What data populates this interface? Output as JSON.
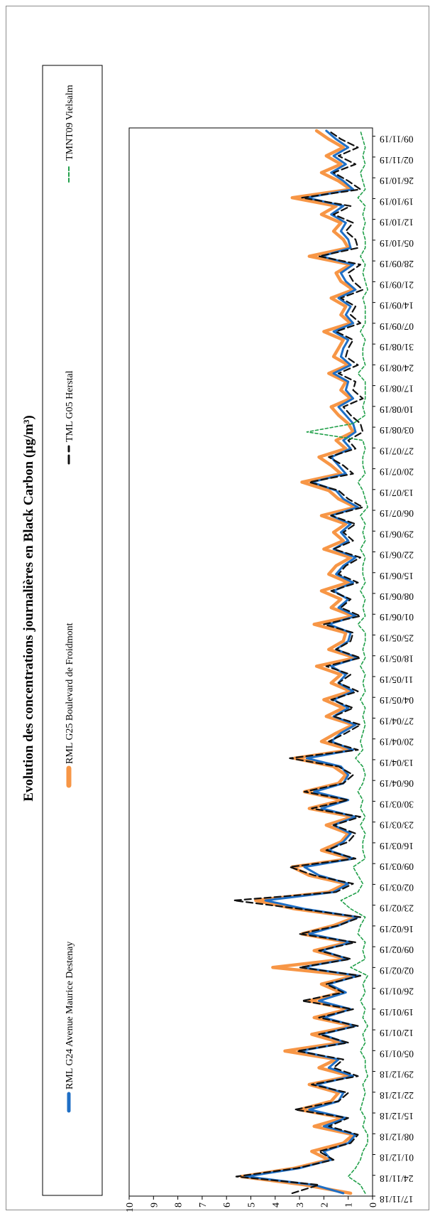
{
  "chart_data": {
    "type": "line",
    "title": "Evolution des concentrations journalières en Black Carbon (µg/m³)",
    "xlabel": "",
    "ylabel": "",
    "ylim": [
      0,
      10
    ],
    "yticks": [
      0,
      1,
      2,
      3,
      4,
      5,
      6,
      7,
      8,
      9,
      10
    ],
    "grid": false,
    "legend": "top",
    "x_tick_labels": [
      "17/11/18",
      "24/11/18",
      "01/12/18",
      "08/12/18",
      "15/12/18",
      "22/12/18",
      "29/12/18",
      "05/01/19",
      "12/01/19",
      "19/01/19",
      "26/01/19",
      "02/02/19",
      "09/02/19",
      "16/02/19",
      "23/02/19",
      "02/03/19",
      "09/03/19",
      "16/03/19",
      "23/03/19",
      "30/03/19",
      "06/04/19",
      "13/04/19",
      "20/04/19",
      "27/04/19",
      "04/05/19",
      "11/05/19",
      "18/05/19",
      "25/05/19",
      "01/06/19",
      "08/06/19",
      "15/06/19",
      "22/06/19",
      "29/06/19",
      "06/07/19",
      "13/07/19",
      "20/07/19",
      "27/07/19",
      "03/08/19",
      "10/08/19",
      "17/08/19",
      "24/08/19",
      "31/08/19",
      "07/09/19",
      "14/09/19",
      "21/09/19",
      "28/09/19",
      "05/10/19",
      "12/10/19",
      "19/10/19",
      "26/10/19",
      "02/11/19",
      "09/11/19"
    ],
    "x_start": "17/11/18",
    "x_end": "12/11/19",
    "series": [
      {
        "name": "RML G25 Boulevard de Froidmont",
        "color": "#f79646",
        "style": "solid-thick",
        "values": [
          0.9,
          2.8,
          5.4,
          3.2,
          1.8,
          2.5,
          1.2,
          0.8,
          2.4,
          1.2,
          3.0,
          1.7,
          1.4,
          2.6,
          0.9,
          2.2,
          1.5,
          3.6,
          1.3,
          2.5,
          0.8,
          2.4,
          1.0,
          2.6,
          1.3,
          2.1,
          0.7,
          4.1,
          1.1,
          2.4,
          1.0,
          2.9,
          1.6,
          0.7,
          3.2,
          4.8,
          1.8,
          1.1,
          2.6,
          3.3,
          0.9,
          2.1,
          1.3,
          1.0,
          1.9,
          0.8,
          2.6,
          1.2,
          2.8,
          1.4,
          1.1,
          1.6,
          3.2,
          0.9,
          2.1,
          1.5,
          0.8,
          1.9,
          1.2,
          2.0,
          0.9,
          1.7,
          1.3,
          2.3,
          0.7,
          1.8,
          1.2,
          1.1,
          2.4,
          0.8,
          1.7,
          1.3,
          2.1,
          1.0,
          1.8,
          1.5,
          0.9,
          2.0,
          1.2,
          1.6,
          1.1,
          2.1,
          0.7,
          1.4,
          1.8,
          2.9,
          1.3,
          1.7,
          2.2,
          1.1,
          1.5,
          0.8,
          1.0,
          1.4,
          1.7,
          0.9,
          1.3,
          1.1,
          1.8,
          1.0,
          1.6,
          1.4,
          1.2,
          2.0,
          0.9,
          1.3,
          1.1,
          1.7,
          0.8,
          1.3,
          1.5,
          0.9,
          2.6,
          1.0,
          1.2,
          1.6,
          1.3,
          2.1,
          1.5,
          3.3,
          0.9,
          1.4,
          2.1,
          1.3,
          1.9,
          1.2,
          1.8,
          2.3
        ]
      },
      {
        "name": "RML G24 Avenue Maurice Destenay",
        "color": "#1f6fc5",
        "style": "solid",
        "values": [
          1.2,
          2.4,
          5.2,
          3.0,
          1.7,
          2.0,
          1.0,
          0.7,
          2.0,
          1.1,
          2.6,
          1.4,
          1.2,
          2.3,
          0.8,
          1.8,
          1.4,
          3.0,
          1.1,
          2.1,
          0.7,
          2.0,
          0.9,
          2.2,
          1.1,
          1.8,
          0.6,
          2.9,
          1.0,
          2.1,
          0.9,
          2.6,
          1.4,
          0.6,
          2.8,
          4.4,
          1.6,
          1.0,
          2.2,
          2.8,
          0.8,
          1.8,
          1.2,
          0.9,
          1.6,
          0.7,
          2.1,
          1.0,
          2.4,
          1.2,
          1.0,
          1.3,
          2.7,
          0.8,
          1.7,
          1.3,
          0.7,
          1.6,
          1.0,
          1.6,
          0.8,
          1.4,
          1.1,
          1.7,
          0.6,
          1.5,
          1.0,
          0.9,
          1.8,
          0.7,
          1.4,
          1.0,
          1.6,
          0.8,
          1.5,
          1.2,
          0.7,
          1.6,
          1.0,
          1.3,
          0.9,
          1.7,
          0.6,
          1.2,
          1.5,
          2.5,
          1.1,
          1.4,
          1.7,
          0.9,
          1.2,
          0.7,
          0.8,
          1.1,
          1.4,
          0.8,
          1.1,
          1.0,
          1.6,
          0.9,
          1.3,
          1.2,
          1.0,
          1.6,
          0.8,
          1.1,
          0.9,
          1.4,
          0.7,
          1.1,
          1.3,
          0.8,
          2.1,
          0.9,
          1.0,
          1.3,
          1.1,
          1.7,
          1.2,
          2.7,
          0.8,
          1.2,
          1.7,
          1.1,
          1.6,
          1.0,
          1.5,
          1.9
        ]
      },
      {
        "name": "TML G05 Herstal",
        "color": "#111111",
        "style": "dashed",
        "values": [
          3.3,
          2.2,
          5.6,
          3.1,
          1.6,
          2.2,
          0.9,
          0.6,
          1.8,
          1.0,
          3.2,
          1.4,
          1.0,
          2.5,
          0.6,
          1.6,
          1.2,
          3.1,
          1.0,
          2.2,
          0.6,
          2.2,
          0.8,
          2.9,
          1.2,
          1.9,
          0.5,
          3.0,
          0.9,
          2.2,
          0.7,
          3.0,
          1.4,
          0.5,
          3.0,
          5.7,
          1.5,
          0.8,
          2.4,
          3.4,
          0.7,
          1.9,
          1.0,
          0.7,
          1.6,
          0.5,
          2.5,
          1.0,
          2.8,
          1.2,
          0.8,
          1.4,
          3.4,
          0.6,
          1.8,
          1.1,
          0.5,
          1.6,
          0.8,
          1.7,
          0.6,
          1.4,
          0.9,
          1.9,
          0.5,
          1.5,
          0.9,
          0.8,
          2.0,
          0.5,
          1.3,
          0.9,
          1.7,
          0.6,
          1.4,
          1.1,
          0.5,
          1.6,
          0.8,
          1.2,
          0.7,
          1.7,
          0.4,
          1.0,
          1.4,
          2.6,
          0.8,
          1.2,
          1.8,
          0.7,
          1.0,
          0.4,
          0.5,
          0.9,
          1.2,
          0.4,
          0.8,
          0.7,
          1.4,
          0.6,
          1.1,
          1.0,
          0.8,
          1.5,
          0.5,
          0.9,
          0.7,
          1.3,
          0.4,
          0.8,
          1.0,
          0.5,
          2.2,
          0.6,
          0.7,
          1.1,
          0.8,
          1.6,
          0.9,
          2.9,
          0.5,
          1.0,
          1.6,
          0.7,
          1.4,
          0.6,
          1.3,
          1.8
        ]
      },
      {
        "name": "TMNT09 Vielsalm",
        "color": "#21a04a",
        "style": "dashed-thin",
        "values": [
          0.3,
          0.5,
          1.0,
          0.7,
          0.5,
          0.4,
          0.2,
          0.2,
          0.4,
          0.3,
          0.5,
          0.4,
          0.3,
          0.4,
          0.2,
          0.3,
          0.3,
          0.5,
          0.3,
          0.4,
          0.2,
          0.4,
          0.3,
          0.5,
          0.3,
          0.4,
          0.2,
          0.9,
          0.3,
          0.4,
          0.3,
          0.6,
          0.5,
          0.3,
          0.9,
          1.3,
          0.6,
          0.4,
          0.6,
          0.8,
          0.3,
          0.4,
          0.4,
          0.3,
          0.5,
          0.3,
          0.5,
          0.4,
          0.6,
          0.4,
          0.3,
          0.4,
          0.7,
          0.4,
          0.5,
          0.4,
          0.3,
          0.4,
          0.3,
          0.5,
          0.3,
          0.4,
          0.3,
          0.5,
          0.3,
          0.4,
          0.3,
          0.3,
          0.6,
          0.3,
          0.4,
          0.3,
          0.5,
          0.3,
          0.4,
          0.4,
          0.3,
          0.5,
          0.3,
          0.4,
          0.3,
          0.5,
          0.2,
          0.3,
          0.4,
          0.6,
          0.3,
          0.4,
          0.4,
          0.3,
          0.4,
          2.7,
          0.8,
          0.3,
          0.4,
          0.3,
          0.3,
          0.3,
          0.6,
          0.3,
          0.4,
          0.4,
          0.3,
          0.5,
          0.3,
          0.3,
          0.3,
          0.4,
          0.2,
          0.3,
          0.4,
          0.3,
          0.5,
          0.3,
          0.3,
          0.4,
          0.3,
          0.4,
          0.3,
          0.6,
          0.3,
          0.4,
          0.5,
          0.3,
          0.4,
          0.3,
          0.4,
          0.5
        ]
      }
    ]
  }
}
